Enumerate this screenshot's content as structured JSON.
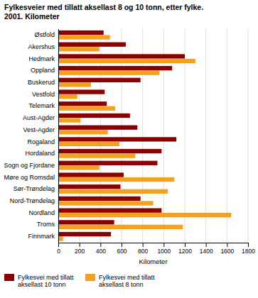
{
  "chart_data": {
    "type": "bar",
    "orientation": "horizontal",
    "title": "Fylkesveier med tillatt aksellast 8 og 10 tonn, etter fylke.\n2001. Kilometer",
    "categories": [
      "Østfold",
      "Akershus",
      "Hedmark",
      "Oppland",
      "Buskerud",
      "Vestfold",
      "Telemark",
      "Aust-Agder",
      "Vest-Agder",
      "Rogaland",
      "Hordaland",
      "Sogn og Fjordane",
      "Møre og Romsdal",
      "Sør-Trøndelag",
      "Nord-Trøndelag",
      "Nordland",
      "Troms",
      "Finnmark"
    ],
    "series": [
      {
        "name": "Fylkesvei med tillatt\naksellast 10 tonn",
        "color": "#8B0000",
        "values": [
          430,
          640,
          1200,
          1080,
          780,
          440,
          460,
          680,
          750,
          1120,
          980,
          940,
          620,
          590,
          780,
          980,
          530,
          500
        ]
      },
      {
        "name": "Fylkesvei med tillatt\naksellast 8 tonn",
        "color": "#F4A020",
        "values": [
          490,
          390,
          1300,
          960,
          310,
          180,
          540,
          210,
          470,
          580,
          730,
          390,
          1100,
          1040,
          900,
          1640,
          1180,
          45
        ]
      }
    ],
    "xlabel": "Kilometer",
    "xlim": [
      0,
      1800
    ],
    "xticks": [
      0,
      200,
      400,
      600,
      800,
      1000,
      1200,
      1400,
      1600,
      1800
    ],
    "grid": true,
    "legend": "bottom"
  }
}
